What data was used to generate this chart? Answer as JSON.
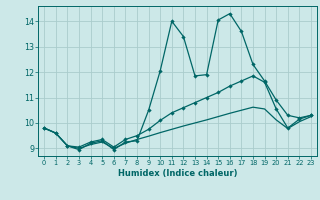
{
  "title": "",
  "xlabel": "Humidex (Indice chaleur)",
  "bg_color": "#cce8e8",
  "line_color": "#006666",
  "grid_color": "#aacccc",
  "xlim": [
    -0.5,
    23.5
  ],
  "ylim": [
    8.7,
    14.6
  ],
  "xticks": [
    0,
    1,
    2,
    3,
    4,
    5,
    6,
    7,
    8,
    9,
    10,
    11,
    12,
    13,
    14,
    15,
    16,
    17,
    18,
    19,
    20,
    21,
    22,
    23
  ],
  "yticks": [
    9,
    10,
    11,
    12,
    13,
    14
  ],
  "line1_x": [
    0,
    1,
    2,
    3,
    4,
    5,
    6,
    7,
    8,
    9,
    10,
    11,
    12,
    13,
    14,
    15,
    16,
    17,
    18,
    19,
    20,
    21,
    22,
    23
  ],
  "line1_y": [
    9.8,
    9.6,
    9.1,
    8.95,
    9.2,
    9.3,
    8.95,
    9.25,
    9.3,
    10.5,
    12.05,
    14.0,
    13.4,
    11.85,
    11.9,
    14.05,
    14.3,
    13.6,
    12.3,
    11.65,
    10.9,
    10.3,
    10.2,
    10.3
  ],
  "line2_x": [
    0,
    1,
    2,
    3,
    4,
    5,
    6,
    7,
    8,
    9,
    10,
    11,
    12,
    13,
    14,
    15,
    16,
    17,
    18,
    19,
    20,
    21,
    22,
    23
  ],
  "line2_y": [
    9.8,
    9.6,
    9.1,
    9.05,
    9.25,
    9.35,
    9.05,
    9.35,
    9.5,
    9.75,
    10.1,
    10.4,
    10.6,
    10.8,
    11.0,
    11.2,
    11.45,
    11.65,
    11.85,
    11.6,
    10.55,
    9.8,
    10.15,
    10.3
  ],
  "line3_x": [
    0,
    1,
    2,
    3,
    4,
    5,
    6,
    7,
    8,
    9,
    10,
    11,
    12,
    13,
    14,
    15,
    16,
    17,
    18,
    19,
    20,
    21,
    22,
    23
  ],
  "line3_y": [
    9.8,
    9.6,
    9.1,
    9.0,
    9.15,
    9.25,
    9.0,
    9.2,
    9.35,
    9.48,
    9.62,
    9.75,
    9.88,
    10.0,
    10.12,
    10.25,
    10.38,
    10.5,
    10.62,
    10.55,
    10.12,
    9.78,
    10.05,
    10.25
  ],
  "marker_size": 2.2,
  "linewidth": 0.9
}
